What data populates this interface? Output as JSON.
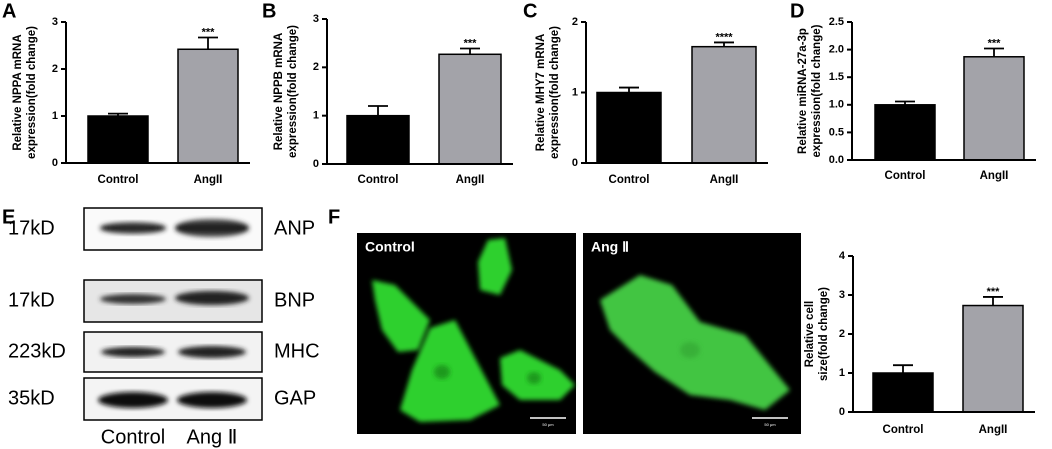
{
  "chart_data": [
    {
      "type": "bar",
      "panel": "A",
      "ylabel": [
        "Relative NPPA mRNA",
        "expression(fold change)"
      ],
      "categories": [
        "Control",
        "AngII"
      ],
      "values": [
        1.0,
        2.42
      ],
      "errors": [
        0.05,
        0.25
      ],
      "colors": [
        "#000000",
        "#a3a3a9"
      ],
      "annotation": "***",
      "ylim": [
        0,
        3
      ],
      "yticks": [
        0,
        1,
        2,
        3
      ]
    },
    {
      "type": "bar",
      "panel": "B",
      "ylabel": [
        "Relative NPPB mRNA",
        "expression(fold change)"
      ],
      "categories": [
        "Control",
        "AngII"
      ],
      "values": [
        1.0,
        2.27
      ],
      "errors": [
        0.2,
        0.12
      ],
      "colors": [
        "#000000",
        "#a3a3a9"
      ],
      "annotation": "***",
      "ylim": [
        0,
        3
      ],
      "yticks": [
        0,
        1,
        2,
        3
      ]
    },
    {
      "type": "bar",
      "panel": "C",
      "ylabel": [
        "Relative MHY7 mRNA",
        "expression(fold change)"
      ],
      "categories": [
        "Control",
        "AngII"
      ],
      "values": [
        1.0,
        1.65
      ],
      "errors": [
        0.07,
        0.06
      ],
      "colors": [
        "#000000",
        "#a3a3a9"
      ],
      "annotation": "****",
      "ylim": [
        0,
        2
      ],
      "yticks": [
        0,
        1,
        2
      ]
    },
    {
      "type": "bar",
      "panel": "D",
      "ylabel": [
        "Relative miRNA-27a-3p",
        "expression(fold change)"
      ],
      "categories": [
        "Control",
        "AngII"
      ],
      "values": [
        1.0,
        1.87
      ],
      "errors": [
        0.06,
        0.15
      ],
      "colors": [
        "#000000",
        "#a3a3a9"
      ],
      "annotation": "***",
      "ylim": [
        0,
        2.5
      ],
      "yticks": [
        {
          "value": 0,
          "label": "0.0"
        },
        0.5,
        {
          "value": 1,
          "label": "1.0"
        },
        1.5,
        {
          "value": 2,
          "label": "2.0"
        },
        2.5
      ]
    },
    {
      "type": "bar",
      "ylabel": [
        "Relative cell",
        "size(fold change)"
      ],
      "categories": [
        "Control",
        "AngII"
      ],
      "values": [
        1.0,
        2.73
      ],
      "errors": [
        0.2,
        0.22
      ],
      "colors": [
        "#000000",
        "#a3a3a9"
      ],
      "annotation": "***",
      "ylim": [
        0,
        4
      ],
      "yticks": [
        0,
        1,
        2,
        3,
        4
      ]
    }
  ],
  "blot": {
    "panel": "E",
    "sizes": [
      "17kD",
      "17kD",
      "223kD",
      "35kD"
    ],
    "proteins": [
      "ANP",
      "BNP",
      "MHC",
      "GAP"
    ],
    "lanes": [
      "Control",
      "Ang Ⅱ"
    ]
  },
  "images": {
    "panel": "F",
    "labels": [
      "Control",
      "Ang Ⅱ"
    ],
    "scale": "50 μm"
  }
}
